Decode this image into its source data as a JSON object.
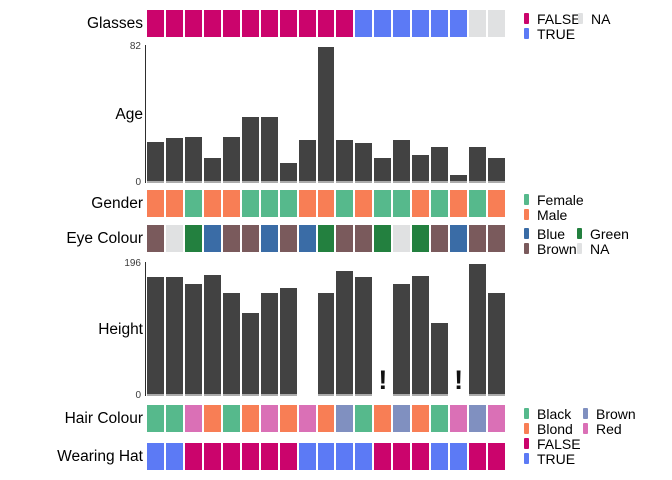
{
  "chart_data": {
    "type": "mixed",
    "description": "Per-observation dataset overview: 19 observations (columns) by 7 variables (rows); categorical strips and bar charts",
    "n_observations": 19,
    "bar_color": "#424242",
    "na_marker": "!",
    "rows": [
      {
        "id": "glasses",
        "variable": "Glasses",
        "kind": "strip",
        "values": [
          "FALSE",
          "FALSE",
          "FALSE",
          "FALSE",
          "FALSE",
          "FALSE",
          "FALSE",
          "FALSE",
          "FALSE",
          "FALSE",
          "FALSE",
          "TRUE",
          "TRUE",
          "TRUE",
          "TRUE",
          "TRUE",
          "TRUE",
          "NA",
          "NA"
        ],
        "palette": {
          "FALSE": "#CB046C",
          "TRUE": "#5C7AF5",
          "NA": "#E0E1E2"
        },
        "legend": [
          [
            {
              "label": "FALSE",
              "color": "#CB046C"
            },
            {
              "label": "NA",
              "color": "#E0E1E2"
            }
          ],
          [
            {
              "label": "TRUE",
              "color": "#5C7AF5"
            }
          ]
        ]
      },
      {
        "id": "age",
        "variable": "Age",
        "kind": "bar",
        "axis": {
          "max": 82,
          "min": 0,
          "max_label": "82",
          "min_label": "0"
        },
        "values": [
          25,
          27,
          28,
          15,
          28,
          40,
          40,
          12,
          26,
          82,
          26,
          24,
          15,
          26,
          17,
          22,
          5,
          22,
          15
        ],
        "marker_columns": []
      },
      {
        "id": "gender",
        "variable": "Gender",
        "kind": "strip",
        "values": [
          "Male",
          "Male",
          "Female",
          "Male",
          "Male",
          "Female",
          "Female",
          "Female",
          "Male",
          "Male",
          "Female",
          "Male",
          "Female",
          "Female",
          "Male",
          "Female",
          "Male",
          "Female",
          "Male"
        ],
        "palette": {
          "Female": "#56B98C",
          "Male": "#F87E55"
        },
        "legend": [
          [
            {
              "label": "Female",
              "color": "#56B98C"
            }
          ],
          [
            {
              "label": "Male",
              "color": "#F87E55"
            }
          ]
        ]
      },
      {
        "id": "eye",
        "variable": "Eye Colour",
        "kind": "strip",
        "values": [
          "Brown",
          "NA",
          "Green",
          "Blue",
          "Brown",
          "Brown",
          "Blue",
          "Brown",
          "Blue",
          "Green",
          "Brown",
          "Brown",
          "Green",
          "NA",
          "Green",
          "Brown",
          "Blue",
          "Brown",
          "Brown"
        ],
        "palette": {
          "Blue": "#3A6CA6",
          "Green": "#23803F",
          "Brown": "#7A5A5C",
          "NA": "#E0E1E2"
        },
        "legend": [
          [
            {
              "label": "Blue",
              "color": "#3A6CA6"
            },
            {
              "label": "Green",
              "color": "#23803F"
            }
          ],
          [
            {
              "label": "Brown",
              "color": "#7A5A5C"
            },
            {
              "label": "NA",
              "color": "#E0E1E2"
            }
          ]
        ]
      },
      {
        "id": "height",
        "variable": "Height",
        "kind": "bar",
        "axis": {
          "max": 196,
          "min": 0,
          "max_label": "196",
          "min_label": "0"
        },
        "values": [
          177,
          177,
          166,
          179,
          153,
          123,
          153,
          161,
          null,
          153,
          185,
          176,
          null,
          166,
          178,
          108,
          null,
          196,
          153
        ],
        "marker_columns": [
          13,
          17
        ]
      },
      {
        "id": "hair",
        "variable": "Hair Colour",
        "kind": "strip",
        "values": [
          "Black",
          "Black",
          "Red",
          "Blond",
          "Black",
          "Blond",
          "Red",
          "Blond",
          "Red",
          "Blond",
          "Brown",
          "Black",
          "Blond",
          "Brown",
          "Blond",
          "Black",
          "Red",
          "Brown",
          "Red"
        ],
        "palette": {
          "Black": "#56B98C",
          "Blond": "#F87E55",
          "Brown": "#8090C0",
          "Red": "#DA70B6"
        },
        "legend": [
          [
            {
              "label": "Black",
              "color": "#56B98C"
            },
            {
              "label": "Brown",
              "color": "#8090C0"
            }
          ],
          [
            {
              "label": "Blond",
              "color": "#F87E55"
            },
            {
              "label": "Red",
              "color": "#DA70B6"
            }
          ]
        ]
      },
      {
        "id": "hat",
        "variable": "Wearing Hat",
        "kind": "strip",
        "values": [
          "TRUE",
          "TRUE",
          "FALSE",
          "FALSE",
          "FALSE",
          "FALSE",
          "FALSE",
          "FALSE",
          "TRUE",
          "TRUE",
          "TRUE",
          "TRUE",
          "FALSE",
          "FALSE",
          "FALSE",
          "TRUE",
          "TRUE",
          "FALSE",
          "FALSE"
        ],
        "palette": {
          "FALSE": "#CB046C",
          "TRUE": "#5C7AF5"
        },
        "legend": [
          [
            {
              "label": "FALSE",
              "color": "#CB046C"
            }
          ],
          [
            {
              "label": "TRUE",
              "color": "#5C7AF5"
            }
          ]
        ]
      }
    ]
  }
}
